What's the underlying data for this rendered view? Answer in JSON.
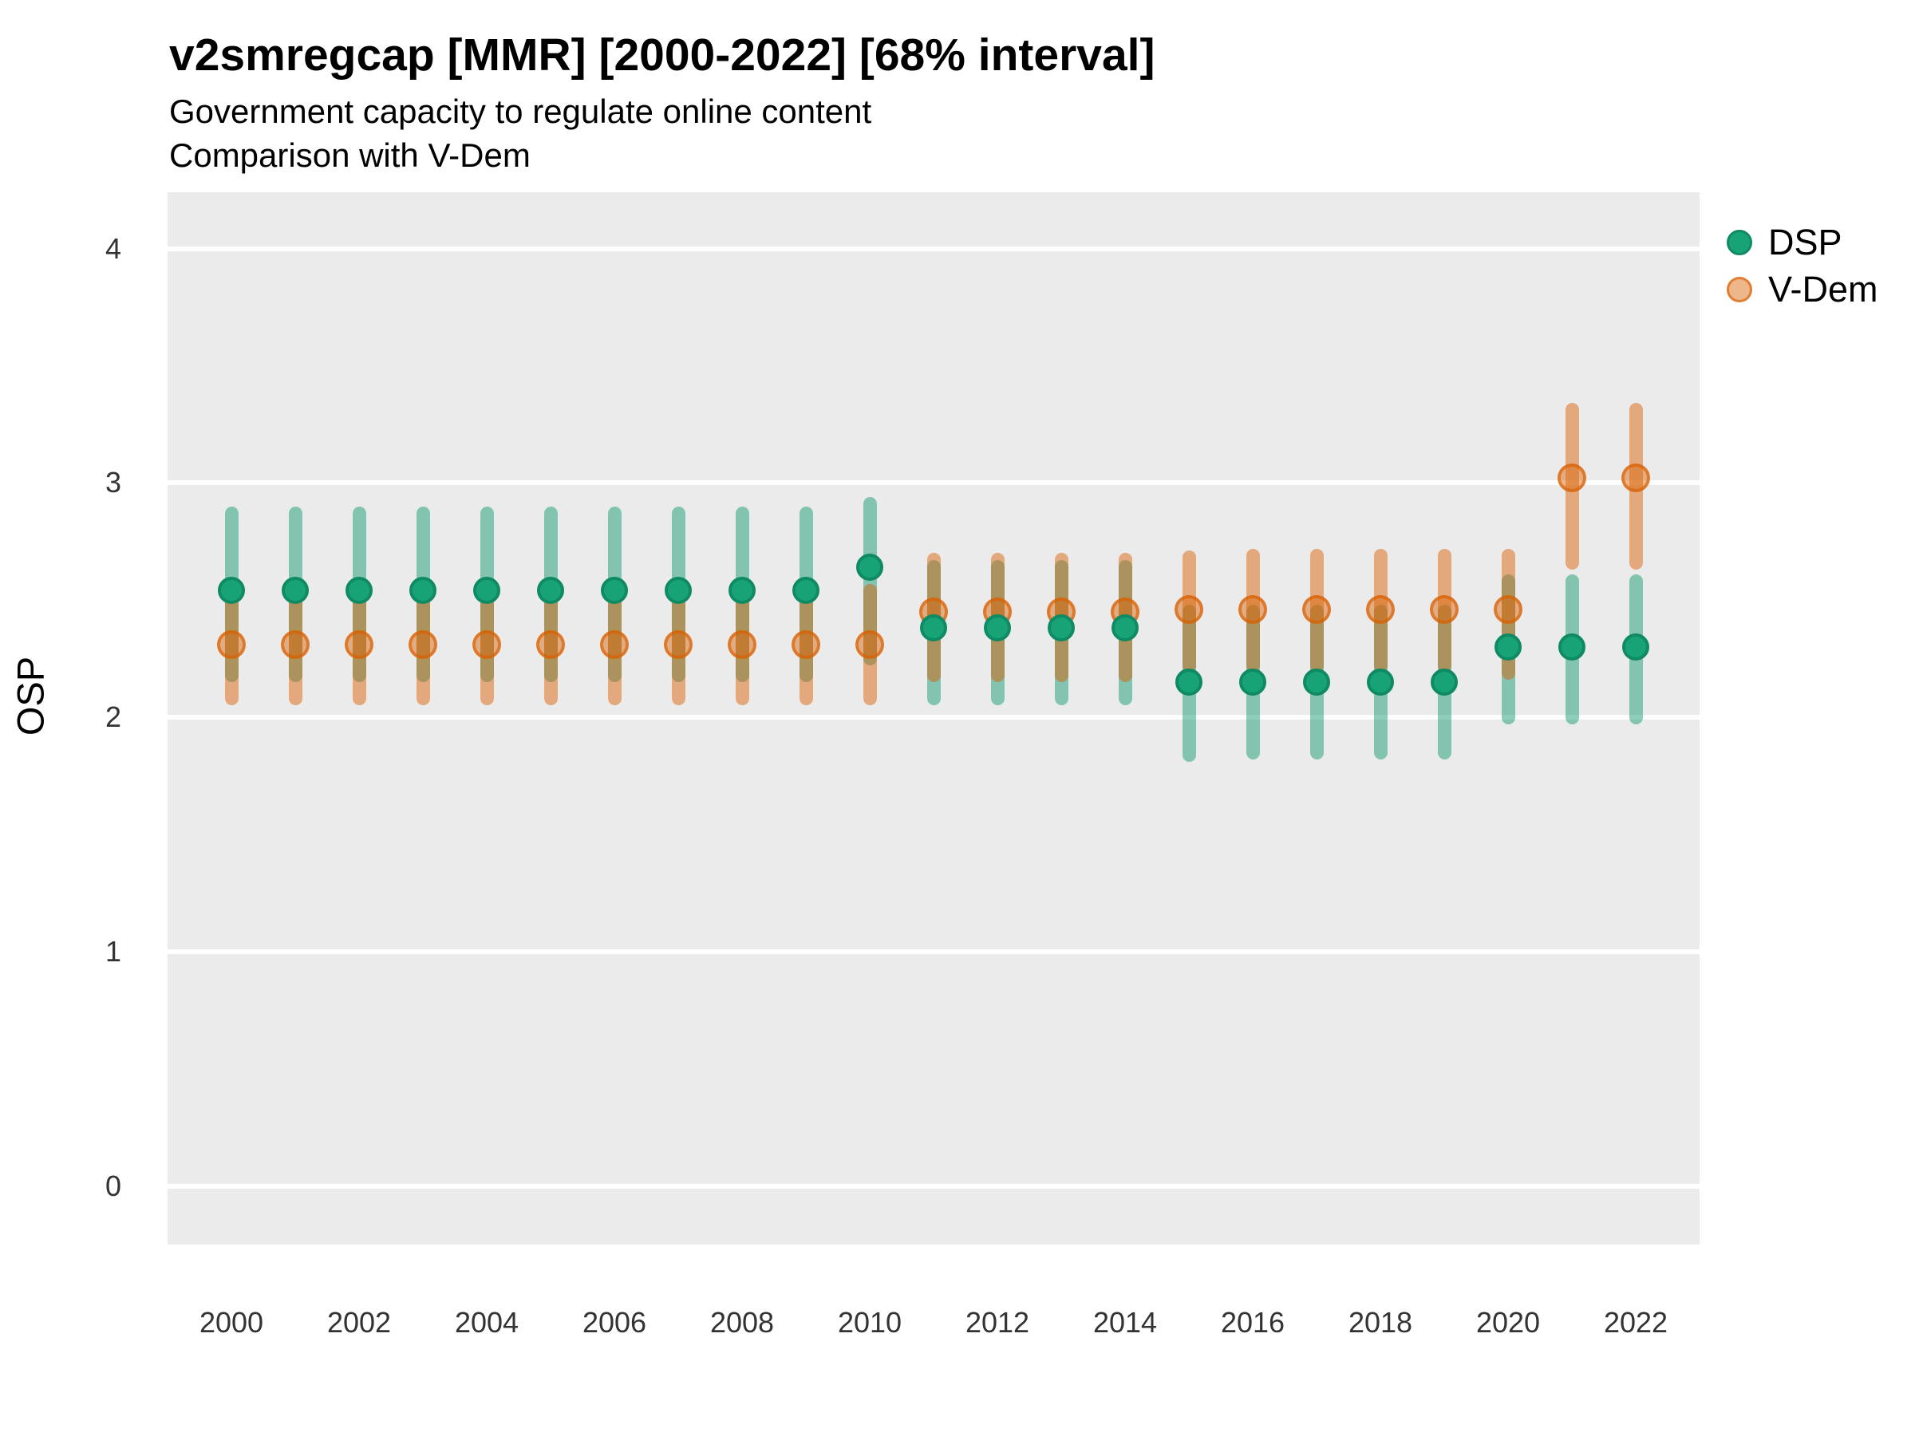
{
  "header": {
    "title": "v2smregcap [MMR] [2000-2022] [68% interval]",
    "subtitle_line1": "Government capacity to regulate online content",
    "subtitle_line2": "Comparison with V-Dem"
  },
  "colors": {
    "panel_background": "#EBEBEB",
    "gridline": "#FFFFFF",
    "dsp_green": "#1B9E77",
    "dsp_marker_fill": "#18A377",
    "dsp_marker_stroke": "#0F8A63",
    "dsp_bar": "rgba(27,158,119,0.5)",
    "vdem_orange": "#D95F02",
    "vdem_marker_fill": "rgba(217,95,2,0.46)",
    "vdem_marker_stroke": "rgba(217,95,2,0.65)",
    "vdem_bar": "rgba(217,95,2,0.48)"
  },
  "legend": {
    "items": [
      {
        "label": "DSP",
        "series": "DSP"
      },
      {
        "label": "V-Dem",
        "series": "V-Dem"
      }
    ]
  },
  "chart_data": {
    "type": "scatter",
    "subtype": "pointrange (dot with 68% credible interval bars)",
    "title": "v2smregcap [MMR] [2000-2022] [68% interval]",
    "subtitle": "Government capacity to regulate online content — Comparison with V-Dem",
    "interval": "68%",
    "xlabel": "",
    "ylabel": "OSP",
    "xlim": [
      1999,
      2023
    ],
    "ylim": [
      -0.25,
      4.24
    ],
    "xticks": [
      2000,
      2002,
      2004,
      2006,
      2008,
      2010,
      2012,
      2014,
      2016,
      2018,
      2020,
      2022
    ],
    "yticks": [
      0,
      1,
      2,
      3,
      4
    ],
    "grid": "horizontal-major-only",
    "legend_position": "right",
    "years": [
      2000,
      2001,
      2002,
      2003,
      2004,
      2005,
      2006,
      2007,
      2008,
      2009,
      2010,
      2011,
      2012,
      2013,
      2014,
      2015,
      2016,
      2017,
      2018,
      2019,
      2020,
      2021,
      2022
    ],
    "series": [
      {
        "name": "DSP",
        "color": "#1B9E77",
        "points": [
          {
            "year": 2000,
            "y": 2.54,
            "ymin": 2.15,
            "ymax": 2.9
          },
          {
            "year": 2001,
            "y": 2.54,
            "ymin": 2.15,
            "ymax": 2.9
          },
          {
            "year": 2002,
            "y": 2.54,
            "ymin": 2.15,
            "ymax": 2.9
          },
          {
            "year": 2003,
            "y": 2.54,
            "ymin": 2.15,
            "ymax": 2.9
          },
          {
            "year": 2004,
            "y": 2.54,
            "ymin": 2.15,
            "ymax": 2.9
          },
          {
            "year": 2005,
            "y": 2.54,
            "ymin": 2.15,
            "ymax": 2.9
          },
          {
            "year": 2006,
            "y": 2.54,
            "ymin": 2.15,
            "ymax": 2.9
          },
          {
            "year": 2007,
            "y": 2.54,
            "ymin": 2.15,
            "ymax": 2.9
          },
          {
            "year": 2008,
            "y": 2.54,
            "ymin": 2.15,
            "ymax": 2.9
          },
          {
            "year": 2009,
            "y": 2.54,
            "ymin": 2.15,
            "ymax": 2.9
          },
          {
            "year": 2010,
            "y": 2.64,
            "ymin": 2.22,
            "ymax": 2.94
          },
          {
            "year": 2011,
            "y": 2.38,
            "ymin": 2.05,
            "ymax": 2.67
          },
          {
            "year": 2012,
            "y": 2.38,
            "ymin": 2.05,
            "ymax": 2.67
          },
          {
            "year": 2013,
            "y": 2.38,
            "ymin": 2.05,
            "ymax": 2.67
          },
          {
            "year": 2014,
            "y": 2.38,
            "ymin": 2.05,
            "ymax": 2.67
          },
          {
            "year": 2015,
            "y": 2.15,
            "ymin": 1.81,
            "ymax": 2.48
          },
          {
            "year": 2016,
            "y": 2.15,
            "ymin": 1.82,
            "ymax": 2.48
          },
          {
            "year": 2017,
            "y": 2.15,
            "ymin": 1.82,
            "ymax": 2.48
          },
          {
            "year": 2018,
            "y": 2.15,
            "ymin": 1.82,
            "ymax": 2.48
          },
          {
            "year": 2019,
            "y": 2.15,
            "ymin": 1.82,
            "ymax": 2.48
          },
          {
            "year": 2020,
            "y": 2.3,
            "ymin": 1.97,
            "ymax": 2.61
          },
          {
            "year": 2021,
            "y": 2.3,
            "ymin": 1.97,
            "ymax": 2.61
          },
          {
            "year": 2022,
            "y": 2.3,
            "ymin": 1.97,
            "ymax": 2.61
          }
        ]
      },
      {
        "name": "V-Dem",
        "color": "#D95F02",
        "points": [
          {
            "year": 2000,
            "y": 2.31,
            "ymin": 2.05,
            "ymax": 2.57
          },
          {
            "year": 2001,
            "y": 2.31,
            "ymin": 2.05,
            "ymax": 2.57
          },
          {
            "year": 2002,
            "y": 2.31,
            "ymin": 2.05,
            "ymax": 2.57
          },
          {
            "year": 2003,
            "y": 2.31,
            "ymin": 2.05,
            "ymax": 2.57
          },
          {
            "year": 2004,
            "y": 2.31,
            "ymin": 2.05,
            "ymax": 2.57
          },
          {
            "year": 2005,
            "y": 2.31,
            "ymin": 2.05,
            "ymax": 2.57
          },
          {
            "year": 2006,
            "y": 2.31,
            "ymin": 2.05,
            "ymax": 2.57
          },
          {
            "year": 2007,
            "y": 2.31,
            "ymin": 2.05,
            "ymax": 2.57
          },
          {
            "year": 2008,
            "y": 2.31,
            "ymin": 2.05,
            "ymax": 2.57
          },
          {
            "year": 2009,
            "y": 2.31,
            "ymin": 2.05,
            "ymax": 2.57
          },
          {
            "year": 2010,
            "y": 2.31,
            "ymin": 2.05,
            "ymax": 2.57
          },
          {
            "year": 2011,
            "y": 2.45,
            "ymin": 2.15,
            "ymax": 2.7
          },
          {
            "year": 2012,
            "y": 2.45,
            "ymin": 2.15,
            "ymax": 2.7
          },
          {
            "year": 2013,
            "y": 2.45,
            "ymin": 2.15,
            "ymax": 2.7
          },
          {
            "year": 2014,
            "y": 2.45,
            "ymin": 2.15,
            "ymax": 2.7
          },
          {
            "year": 2015,
            "y": 2.46,
            "ymin": 2.19,
            "ymax": 2.71
          },
          {
            "year": 2016,
            "y": 2.46,
            "ymin": 2.19,
            "ymax": 2.72
          },
          {
            "year": 2017,
            "y": 2.46,
            "ymin": 2.19,
            "ymax": 2.72
          },
          {
            "year": 2018,
            "y": 2.46,
            "ymin": 2.19,
            "ymax": 2.72
          },
          {
            "year": 2019,
            "y": 2.46,
            "ymin": 2.19,
            "ymax": 2.72
          },
          {
            "year": 2020,
            "y": 2.46,
            "ymin": 2.16,
            "ymax": 2.72
          },
          {
            "year": 2021,
            "y": 3.02,
            "ymin": 2.63,
            "ymax": 3.34
          },
          {
            "year": 2022,
            "y": 3.02,
            "ymin": 2.63,
            "ymax": 3.34
          }
        ]
      }
    ]
  }
}
